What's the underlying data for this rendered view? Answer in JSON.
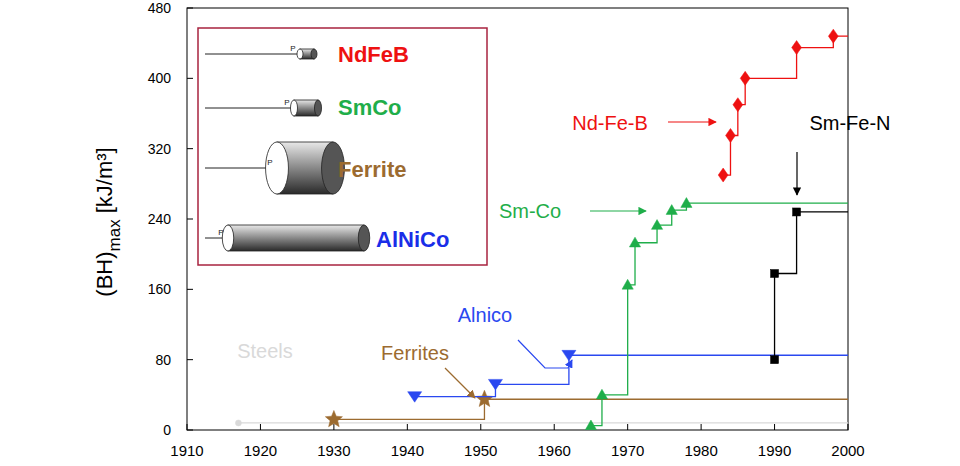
{
  "chart_data": {
    "type": "line",
    "y_label": "(BH)",
    "y_label_subscript": "max",
    "y_unit": "[kJ/m³]",
    "xlim": [
      1910,
      2000
    ],
    "xticks": [
      1910,
      1920,
      1930,
      1940,
      1950,
      1960,
      1970,
      1980,
      1990,
      2000
    ],
    "ylim": [
      0,
      480
    ],
    "yticks": [
      0,
      80,
      160,
      240,
      320,
      400,
      480
    ],
    "grid": false,
    "series": [
      {
        "name": "Steels",
        "color": "#d9d9d9",
        "marker": "circle",
        "line_style": "step",
        "x": [
          1917
        ],
        "values": [
          8
        ]
      },
      {
        "name": "Ferrites",
        "color": "#9c6b30",
        "marker": "star",
        "line_style": "step",
        "x": [
          1930,
          1950.5
        ],
        "values": [
          12,
          35
        ]
      },
      {
        "name": "Alnico",
        "color": "#2a48f0",
        "marker": "triangle-down",
        "line_style": "step",
        "x": [
          1941,
          1952,
          1962
        ],
        "values": [
          38,
          52,
          85
        ]
      },
      {
        "name": "Sm-Co",
        "color": "#1fae4a",
        "marker": "triangle-up",
        "line_style": "step",
        "x": [
          1965,
          1966.5,
          1970,
          1971,
          1974,
          1976,
          1978
        ],
        "values": [
          5,
          40,
          165,
          213,
          233,
          250,
          258
        ]
      },
      {
        "name": "Nd-Fe-B",
        "color": "#ee1111",
        "marker": "diamond",
        "line_style": "step",
        "x": [
          1983,
          1984,
          1985,
          1986,
          1993,
          1998
        ],
        "values": [
          290,
          335,
          370,
          400,
          435,
          448
        ]
      },
      {
        "name": "Sm-Fe-N",
        "color": "#000000",
        "marker": "square",
        "line_style": "step",
        "x": [
          1990,
          1990,
          1993
        ],
        "values": [
          80,
          178,
          248
        ]
      }
    ],
    "inset": {
      "force_label": "P",
      "items": [
        {
          "label": "NdFeB",
          "color": "#ee1111"
        },
        {
          "label": "SmCo",
          "color": "#1fae4a"
        },
        {
          "label": "Ferrite",
          "color": "#9c6b30"
        },
        {
          "label": "AlNiCo",
          "color": "#1a2ee8"
        }
      ]
    }
  }
}
